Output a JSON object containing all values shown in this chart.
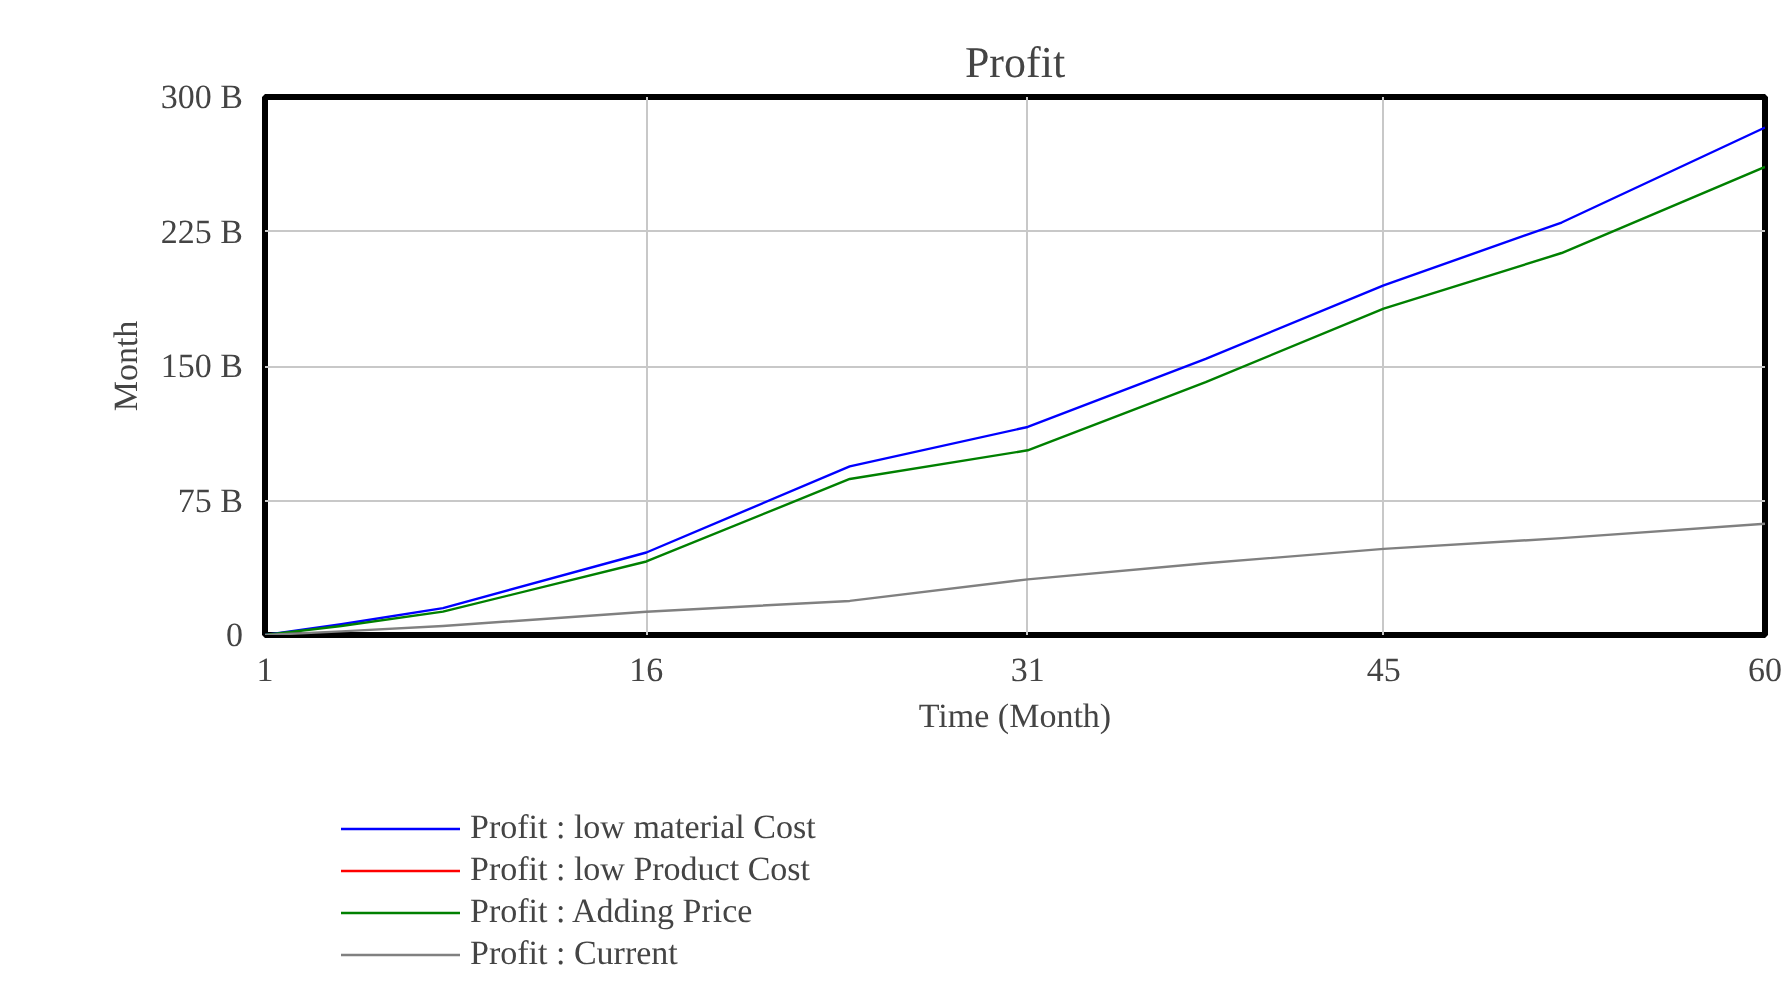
{
  "chart_data": {
    "type": "line",
    "title": "Profit",
    "xlabel": "Time (Month)",
    "ylabel": "Month",
    "x": [
      1,
      4,
      8,
      16,
      24,
      31,
      38,
      45,
      52,
      60
    ],
    "series": [
      {
        "name": "Profit : low material Cost",
        "color": "#0000ff",
        "values": [
          0,
          6,
          15,
          46,
          94,
          116,
          154,
          195,
          230,
          283
        ]
      },
      {
        "name": "Profit : low Product Cost",
        "color": "#ff0000",
        "values": [
          null,
          null,
          null,
          null,
          null,
          null,
          null,
          null,
          null,
          null
        ]
      },
      {
        "name": "Profit : Adding Price",
        "color": "#008000",
        "values": [
          0,
          5,
          13,
          41,
          87,
          103,
          141,
          182,
          213,
          261
        ]
      },
      {
        "name": "Profit : Current",
        "color": "#808080",
        "values": [
          0,
          2,
          5,
          13,
          19,
          31,
          40,
          48,
          54,
          62
        ]
      }
    ],
    "xlim": [
      1,
      60
    ],
    "xticks": [
      1,
      16,
      31,
      45,
      60
    ],
    "ylim": [
      0,
      300
    ],
    "yticks": [
      {
        "value": 0,
        "label": "0"
      },
      {
        "value": 75,
        "label": "75 B"
      },
      {
        "value": 150,
        "label": "150 B"
      },
      {
        "value": 225,
        "label": "225 B"
      },
      {
        "value": 300,
        "label": "300 B"
      }
    ],
    "grid": true,
    "legend": "bottom",
    "line_style": "solid"
  }
}
